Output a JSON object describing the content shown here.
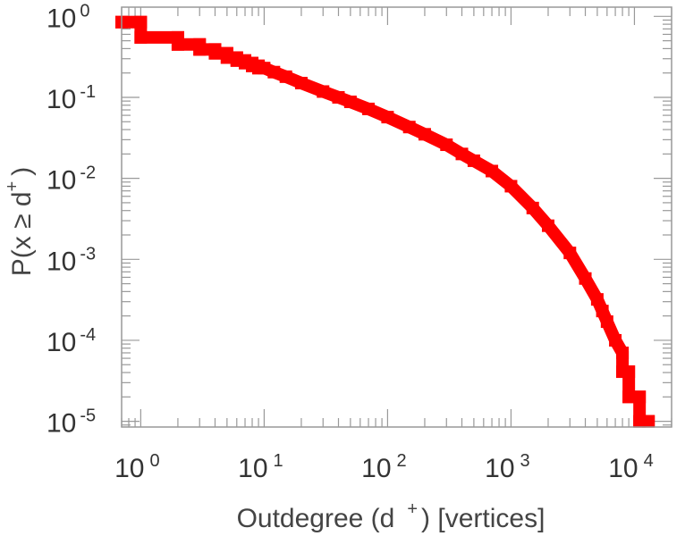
{
  "chart_data": {
    "type": "line",
    "title": "",
    "xlabel": {
      "prefix": "Outdegree (d",
      "sup": "+",
      "suffix": ") [vertices]"
    },
    "ylabel": {
      "prefix": "P(x ≥ d",
      "sup": "+",
      "suffix": ")"
    },
    "x_scale": "log",
    "y_scale": "log",
    "xlim": [
      0.7,
      20000
    ],
    "ylim": [
      8.5e-06,
      1.3
    ],
    "grid": false,
    "x_ticks": [
      {
        "value": 1,
        "base": "10",
        "exp": "0"
      },
      {
        "value": 10,
        "base": "10",
        "exp": "1"
      },
      {
        "value": 100,
        "base": "10",
        "exp": "2"
      },
      {
        "value": 1000,
        "base": "10",
        "exp": "3"
      },
      {
        "value": 10000,
        "base": "10",
        "exp": "4"
      }
    ],
    "y_ticks": [
      {
        "value": 1,
        "base": "10",
        "exp": "0"
      },
      {
        "value": 0.1,
        "base": "10",
        "exp": "-1"
      },
      {
        "value": 0.01,
        "base": "10",
        "exp": "-2"
      },
      {
        "value": 0.001,
        "base": "10",
        "exp": "-3"
      },
      {
        "value": 0.0001,
        "base": "10",
        "exp": "-4"
      },
      {
        "value": 1e-05,
        "base": "10",
        "exp": "-5"
      }
    ],
    "series": [
      {
        "color": "#ff0000",
        "marker": "square",
        "points": [
          [
            0.7,
            0.85
          ],
          [
            1,
            0.85
          ],
          [
            1,
            0.55
          ],
          [
            2,
            0.55
          ],
          [
            2,
            0.45
          ],
          [
            3,
            0.45
          ],
          [
            3,
            0.39
          ],
          [
            4,
            0.39
          ],
          [
            4,
            0.35
          ],
          [
            5,
            0.35
          ],
          [
            5,
            0.31
          ],
          [
            6,
            0.31
          ],
          [
            6,
            0.285
          ],
          [
            7,
            0.285
          ],
          [
            7,
            0.265
          ],
          [
            8,
            0.265
          ],
          [
            8,
            0.245
          ],
          [
            9,
            0.245
          ],
          [
            9,
            0.23
          ],
          [
            10,
            0.23
          ],
          [
            12,
            0.205
          ],
          [
            15,
            0.18
          ],
          [
            20,
            0.15
          ],
          [
            30,
            0.118
          ],
          [
            40,
            0.1
          ],
          [
            50,
            0.088
          ],
          [
            70,
            0.072
          ],
          [
            100,
            0.057
          ],
          [
            150,
            0.043
          ],
          [
            200,
            0.035
          ],
          [
            300,
            0.026
          ],
          [
            400,
            0.02
          ],
          [
            500,
            0.0165
          ],
          [
            700,
            0.0123
          ],
          [
            1000,
            0.008
          ],
          [
            1500,
            0.0043
          ],
          [
            2000,
            0.0026
          ],
          [
            3000,
            0.0012
          ],
          [
            4000,
            0.00058
          ],
          [
            5000,
            0.00032
          ],
          [
            5500,
            0.00023
          ],
          [
            6000,
            0.00017
          ],
          [
            7000,
            0.0001
          ],
          [
            8000,
            7e-05
          ],
          [
            8000,
            4.1e-05
          ],
          [
            9000,
            4.1e-05
          ],
          [
            9000,
            2e-05
          ],
          [
            11000,
            2e-05
          ],
          [
            11000,
            1e-05
          ],
          [
            13000,
            1e-05
          ]
        ]
      }
    ]
  }
}
